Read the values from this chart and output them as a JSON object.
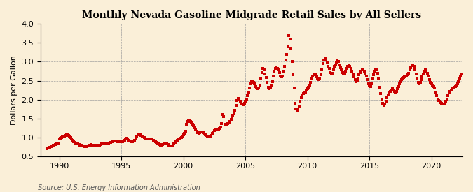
{
  "title": "Monthly Nevada Gasoline Midgrade Retail Sales by All Sellers",
  "ylabel": "Dollars per Gallon",
  "source": "Source: U.S. Energy Information Administration",
  "bg_color": "#faefd8",
  "plot_bg_color": "#faefd8",
  "marker_color": "#cc0000",
  "xlim": [
    1988.5,
    2022.5
  ],
  "ylim": [
    0.5,
    4.0
  ],
  "xticks": [
    1990,
    1995,
    2000,
    2005,
    2010,
    2015,
    2020
  ],
  "yticks": [
    0.5,
    1.0,
    1.5,
    2.0,
    2.5,
    3.0,
    3.5,
    4.0
  ],
  "prices": [
    0.69,
    0.71,
    0.72,
    0.74,
    0.76,
    0.77,
    0.79,
    0.8,
    0.81,
    0.82,
    0.83,
    0.84,
    0.96,
    0.98,
    1.0,
    1.02,
    1.03,
    1.04,
    1.05,
    1.06,
    1.07,
    1.05,
    1.01,
    0.99,
    0.96,
    0.93,
    0.89,
    0.86,
    0.84,
    0.83,
    0.82,
    0.81,
    0.8,
    0.79,
    0.78,
    0.77,
    0.76,
    0.76,
    0.76,
    0.77,
    0.78,
    0.79,
    0.8,
    0.81,
    0.8,
    0.8,
    0.79,
    0.79,
    0.79,
    0.79,
    0.8,
    0.8,
    0.81,
    0.82,
    0.82,
    0.82,
    0.82,
    0.83,
    0.83,
    0.84,
    0.85,
    0.86,
    0.87,
    0.88,
    0.9,
    0.91,
    0.91,
    0.9,
    0.89,
    0.89,
    0.88,
    0.88,
    0.88,
    0.89,
    0.9,
    0.92,
    0.95,
    0.97,
    0.95,
    0.93,
    0.91,
    0.9,
    0.88,
    0.88,
    0.9,
    0.93,
    0.97,
    1.02,
    1.06,
    1.08,
    1.07,
    1.05,
    1.03,
    1.01,
    0.99,
    0.97,
    0.96,
    0.95,
    0.95,
    0.95,
    0.95,
    0.96,
    0.95,
    0.93,
    0.91,
    0.89,
    0.86,
    0.83,
    0.82,
    0.81,
    0.8,
    0.8,
    0.81,
    0.83,
    0.84,
    0.83,
    0.82,
    0.81,
    0.79,
    0.78,
    0.77,
    0.77,
    0.79,
    0.82,
    0.87,
    0.91,
    0.93,
    0.95,
    0.96,
    0.98,
    1.0,
    1.03,
    1.06,
    1.1,
    1.16,
    1.35,
    1.42,
    1.46,
    1.44,
    1.42,
    1.38,
    1.35,
    1.3,
    1.25,
    1.2,
    1.16,
    1.12,
    1.11,
    1.13,
    1.15,
    1.15,
    1.13,
    1.1,
    1.07,
    1.05,
    1.03,
    1.02,
    1.01,
    1.02,
    1.05,
    1.1,
    1.15,
    1.18,
    1.19,
    1.2,
    1.21,
    1.22,
    1.24,
    1.27,
    1.37,
    1.6,
    1.55,
    1.35,
    1.32,
    1.34,
    1.36,
    1.38,
    1.42,
    1.48,
    1.55,
    1.58,
    1.63,
    1.72,
    1.85,
    1.97,
    2.03,
    2.02,
    1.95,
    1.9,
    1.88,
    1.87,
    1.9,
    1.95,
    2.02,
    2.1,
    2.2,
    2.3,
    2.42,
    2.5,
    2.48,
    2.45,
    2.42,
    2.35,
    2.3,
    2.28,
    2.3,
    2.37,
    2.55,
    2.72,
    2.82,
    2.8,
    2.68,
    2.58,
    2.45,
    2.32,
    2.28,
    2.3,
    2.36,
    2.48,
    2.62,
    2.75,
    2.82,
    2.85,
    2.82,
    2.78,
    2.72,
    2.62,
    2.6,
    2.62,
    2.75,
    2.88,
    3.05,
    3.2,
    3.4,
    3.7,
    3.6,
    3.35,
    3.0,
    2.65,
    2.3,
    1.9,
    1.75,
    1.72,
    1.75,
    1.82,
    1.95,
    2.05,
    2.12,
    2.15,
    2.18,
    2.2,
    2.25,
    2.28,
    2.32,
    2.38,
    2.45,
    2.55,
    2.62,
    2.65,
    2.68,
    2.65,
    2.6,
    2.55,
    2.52,
    2.55,
    2.65,
    2.8,
    2.95,
    3.05,
    3.08,
    3.05,
    2.98,
    2.88,
    2.82,
    2.72,
    2.68,
    2.7,
    2.78,
    2.88,
    2.92,
    2.98,
    3.02,
    3.0,
    2.92,
    2.85,
    2.8,
    2.72,
    2.68,
    2.7,
    2.75,
    2.82,
    2.88,
    2.9,
    2.88,
    2.82,
    2.75,
    2.68,
    2.6,
    2.52,
    2.48,
    2.5,
    2.56,
    2.65,
    2.72,
    2.75,
    2.78,
    2.78,
    2.75,
    2.7,
    2.62,
    2.52,
    2.42,
    2.38,
    2.35,
    2.42,
    2.55,
    2.65,
    2.75,
    2.8,
    2.78,
    2.7,
    2.55,
    2.32,
    2.15,
    2.0,
    1.9,
    1.85,
    1.88,
    1.95,
    2.05,
    2.12,
    2.18,
    2.22,
    2.25,
    2.28,
    2.25,
    2.22,
    2.2,
    2.22,
    2.28,
    2.35,
    2.42,
    2.48,
    2.52,
    2.55,
    2.58,
    2.6,
    2.62,
    2.62,
    2.65,
    2.7,
    2.78,
    2.85,
    2.9,
    2.92,
    2.88,
    2.8,
    2.68,
    2.55,
    2.45,
    2.42,
    2.45,
    2.52,
    2.6,
    2.68,
    2.75,
    2.78,
    2.75,
    2.7,
    2.62,
    2.52,
    2.45,
    2.42,
    2.38,
    2.35,
    2.3,
    2.2,
    2.1,
    2.02,
    1.98,
    1.95,
    1.92,
    1.9,
    1.88,
    1.88,
    1.9,
    1.95,
    2.02,
    2.1,
    2.18,
    2.22,
    2.25,
    2.28,
    2.3,
    2.32,
    2.35,
    2.38,
    2.42,
    2.48,
    2.55,
    2.62,
    2.68
  ],
  "start_year": 1989,
  "start_month": 1
}
